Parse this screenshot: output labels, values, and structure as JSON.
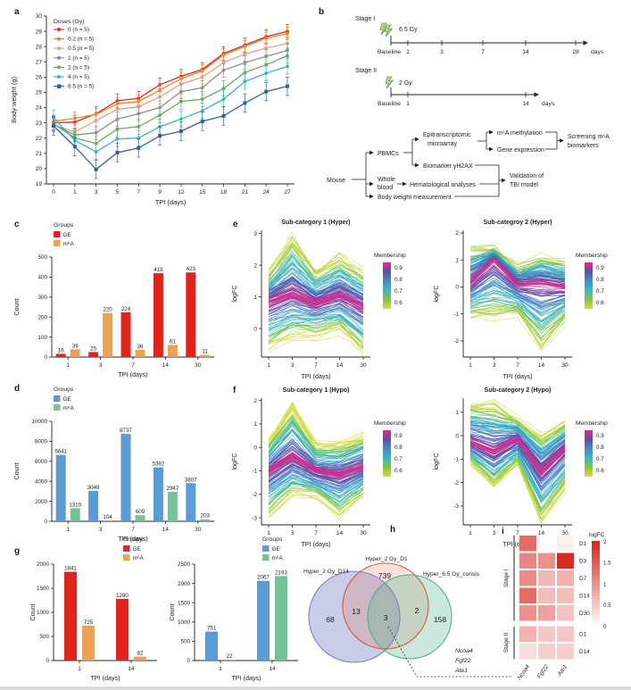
{
  "panels": {
    "a": "a",
    "b": "b",
    "c": "c",
    "d": "d",
    "e": "e",
    "f": "f",
    "g": "g",
    "h": "h",
    "i": "i"
  },
  "panel_b": {
    "stage1": {
      "label": "Stage I",
      "dose": "6.5 Gy",
      "baseline": "Baseline",
      "ticks": [
        "1",
        "3",
        "7",
        "14",
        "28"
      ],
      "unit": "days"
    },
    "stage2": {
      "label": "Stage II",
      "dose": "2 Gy",
      "baseline": "Baseline",
      "ticks": [
        "1",
        "14"
      ],
      "unit": "days"
    },
    "flow": {
      "mouse": "Mouse",
      "pbmcs": "PBMCs",
      "whole_blood_1": "Whole",
      "whole_blood_2": "blood",
      "body_weight": "Body weight measurement",
      "epitrans_1": "Epitranscriptomic",
      "epitrans_2": "microarray",
      "biomarker": "Biomarker γH2AX",
      "hematology": "Hematological analyses",
      "m6a_meth": "m⁶A methylation",
      "gene_expr": "Gene expression",
      "screening_1": "Screening m⁶A",
      "screening_2": "biomarkers",
      "validation_1": "Validation of",
      "validation_2": "TBI model"
    }
  },
  "membership": {
    "title": "Membership",
    "ticks": [
      "0.9",
      "0.8",
      "0.7",
      "0.6"
    ],
    "stops": [
      "#e8268d",
      "#5b50a5",
      "#3f8fc9",
      "#3ab9c0",
      "#86c53f",
      "#d8dd33"
    ]
  },
  "chart_data": [
    {
      "panel": "a",
      "type": "line",
      "xlabel": "TPI (days)",
      "ylabel": "Body weight (g)",
      "x": [
        0,
        1,
        3,
        5,
        7,
        9,
        12,
        15,
        18,
        21,
        24,
        27
      ],
      "ylim": [
        19,
        30
      ],
      "yticks": [
        19,
        20,
        21,
        22,
        23,
        24,
        25,
        26,
        27,
        28,
        29,
        30
      ],
      "legend_title": "Doses (Gy)",
      "series": [
        {
          "name": "0 (n = 5)",
          "color": "#d9291c",
          "err": 0.45,
          "values": [
            23.0,
            23.05,
            23.6,
            24.45,
            24.6,
            25.5,
            26.05,
            26.5,
            27.55,
            28.1,
            28.65,
            29.0
          ]
        },
        {
          "name": "0.2 (n = 5)",
          "color": "#e8861d",
          "err": 0.4,
          "values": [
            23.1,
            23.3,
            23.55,
            24.25,
            24.4,
            25.15,
            25.9,
            26.4,
            27.45,
            28.0,
            28.55,
            28.85
          ]
        },
        {
          "name": "0.5 (n = 5)",
          "color": "#e99d85",
          "err": 0.45,
          "values": [
            22.85,
            22.4,
            23.15,
            23.9,
            24.05,
            24.7,
            25.55,
            26.0,
            26.95,
            27.5,
            27.9,
            28.2
          ]
        },
        {
          "name": "1 (n = 5)",
          "color": "#8e8e8e",
          "err": 0.45,
          "values": [
            22.9,
            22.2,
            22.35,
            23.25,
            23.6,
            24.0,
            25.05,
            25.3,
            26.45,
            26.95,
            27.35,
            27.75
          ]
        },
        {
          "name": "2 (n = 5)",
          "color": "#5fae5f",
          "err": 0.5,
          "values": [
            22.95,
            22.0,
            21.65,
            22.6,
            22.75,
            23.5,
            24.4,
            24.55,
            25.25,
            26.3,
            26.8,
            27.4
          ]
        },
        {
          "name": "4 (n = 5)",
          "color": "#3ab8b0",
          "err": 0.5,
          "values": [
            23.35,
            21.85,
            21.1,
            21.95,
            22.0,
            22.75,
            23.25,
            23.8,
            24.55,
            25.7,
            26.25,
            26.7
          ]
        },
        {
          "name": "6.5 (n = 5)",
          "color": "#2f5fa5",
          "err": 0.6,
          "values": [
            22.8,
            21.45,
            19.95,
            21.05,
            21.35,
            22.15,
            22.45,
            23.1,
            23.45,
            24.3,
            25.05,
            25.4
          ]
        }
      ]
    },
    {
      "panel": "c",
      "type": "bar",
      "xlabel": "TPI (days)",
      "ylabel": "Count",
      "legend_title": "Groups",
      "categories": [
        "1",
        "3",
        "7",
        "14",
        "30"
      ],
      "ylim": [
        0,
        500
      ],
      "yticks": [
        0,
        100,
        200,
        300,
        400,
        500
      ],
      "series": [
        {
          "name": "GE",
          "color": "#e0231d",
          "values": [
            16,
            25,
            224,
            419,
            423
          ]
        },
        {
          "name": "m⁶A",
          "color": "#f0a052",
          "values": [
            39,
            220,
            36,
            61,
            11
          ]
        }
      ]
    },
    {
      "panel": "d",
      "type": "bar",
      "xlabel": "TPI (days)",
      "ylabel": "Count",
      "legend_title": "Groups",
      "categories": [
        "1",
        "3",
        "7",
        "14",
        "30"
      ],
      "ylim": [
        0,
        10000
      ],
      "yticks": [
        0,
        2000,
        4000,
        6000,
        8000,
        10000
      ],
      "series": [
        {
          "name": "GE",
          "color": "#5b9bd5",
          "values": [
            6641,
            3049,
            8737,
            5392,
            3807
          ]
        },
        {
          "name": "m⁶A",
          "color": "#74c296",
          "values": [
            1310,
            104,
            609,
            2947,
            203
          ]
        }
      ]
    },
    {
      "panel": "e1",
      "type": "fuzzy",
      "title": "Sub-category 1 (Hyper)",
      "xlabel": "TPI (days)",
      "ylabel": "logFC",
      "x": [
        "1",
        "3",
        "7",
        "14",
        "30"
      ],
      "ylim": [
        -0.9,
        3.1
      ],
      "yticks": [
        0,
        1,
        2,
        3
      ],
      "center": [
        0.85,
        1.1,
        0.8,
        1.05,
        0.7
      ],
      "up": [
        0.95,
        1.85,
        1.0,
        1.25,
        1.1
      ],
      "down": [
        1.5,
        1.3,
        1.0,
        1.1,
        1.5
      ],
      "n_lines": 160,
      "seed": 11
    },
    {
      "panel": "e2",
      "type": "fuzzy",
      "title": "Sub-categroy 2 (Hyper)",
      "xlabel": "TPI (days)",
      "ylabel": "logFC",
      "x": [
        "1",
        "3",
        "7",
        "14",
        "30"
      ],
      "ylim": [
        -2.6,
        2.1
      ],
      "yticks": [
        -2,
        -1,
        0,
        1,
        2
      ],
      "center": [
        0.15,
        1.0,
        0.1,
        0.15,
        0.0
      ],
      "up": [
        1.45,
        0.45,
        0.7,
        1.0,
        1.0
      ],
      "down": [
        1.3,
        2.2,
        1.1,
        2.6,
        1.3
      ],
      "n_lines": 160,
      "seed": 22
    },
    {
      "panel": "f1",
      "type": "fuzzy",
      "title": "Sub-category 1 (Hypo)",
      "xlabel": "TPI (days)",
      "ylabel": "logFC",
      "x": [
        "1",
        "3",
        "7",
        "14",
        "30"
      ],
      "ylim": [
        -3.3,
        2.1
      ],
      "yticks": [
        -3,
        -2,
        -1,
        0,
        1,
        2
      ],
      "center": [
        -1.0,
        -0.35,
        -1.0,
        -1.15,
        -0.8
      ],
      "up": [
        1.3,
        2.15,
        1.1,
        1.25,
        1.3
      ],
      "down": [
        2.0,
        1.75,
        1.1,
        1.85,
        1.3
      ],
      "n_lines": 170,
      "seed": 33
    },
    {
      "panel": "f2",
      "type": "fuzzy",
      "title": "Sub-category 2 (Hypo)",
      "xlabel": "TPI (days)",
      "ylabel": "logFC",
      "x": [
        "1",
        "3",
        "7",
        "14",
        "30"
      ],
      "ylim": [
        -3.8,
        1.6
      ],
      "yticks": [
        -3,
        -2,
        -1,
        0,
        1
      ],
      "center": [
        -0.3,
        -0.7,
        -0.15,
        -1.5,
        -0.55
      ],
      "up": [
        1.75,
        2.2,
        0.85,
        1.5,
        1.15
      ],
      "down": [
        0.85,
        1.5,
        1.05,
        2.2,
        1.75
      ],
      "n_lines": 170,
      "seed": 44
    },
    {
      "panel": "g1",
      "type": "bar",
      "xlabel": "TPI (days)",
      "ylabel": "Count",
      "legend_title": "Groups",
      "categories": [
        "1",
        "14"
      ],
      "ylim": [
        0,
        2000
      ],
      "yticks": [
        0,
        500,
        1000,
        1500,
        2000
      ],
      "series": [
        {
          "name": "GE",
          "color": "#e0231d",
          "values": [
            1841,
            1280
          ]
        },
        {
          "name": "m⁶A",
          "color": "#f0a052",
          "values": [
            725,
            82
          ]
        }
      ]
    },
    {
      "panel": "g2",
      "type": "bar",
      "xlabel": "TPI (days)",
      "ylabel": "Count",
      "legend_title": "Groups",
      "categories": [
        "1",
        "14"
      ],
      "ylim": [
        0,
        2500
      ],
      "yticks": [
        0,
        500,
        1000,
        1500,
        2000,
        2500
      ],
      "series": [
        {
          "name": "GE",
          "color": "#5b9bd5",
          "values": [
            751,
            2067
          ]
        },
        {
          "name": "m⁶A",
          "color": "#74c296",
          "values": [
            22,
            2193
          ]
        }
      ]
    },
    {
      "panel": "h",
      "type": "venn",
      "sets": [
        {
          "label": "Hyper_2 Gy_D14",
          "stroke": "#7a83c2",
          "fill": "#7a83c2",
          "opacity": 0.4
        },
        {
          "label": "Hyper_2 Gy_D1",
          "stroke": "#e2573a",
          "fill": "#e2573a",
          "opacity": 0.18
        },
        {
          "label": "Hyper_6.5 Gy_consis",
          "stroke": "#4eb287",
          "fill": "#4eb287",
          "opacity": 0.3
        }
      ],
      "counts": {
        "set1_only": "68",
        "set2_only": "739",
        "set3_only": "158",
        "set1_set2": "13",
        "set2_set3": "2",
        "all": "3"
      },
      "genes": [
        "Ncoa4",
        "Fgf22",
        "Ate1"
      ]
    },
    {
      "panel": "i",
      "type": "heatmap",
      "scale_title": "logFC",
      "scale_ticks": [
        "2",
        "1.5",
        "1",
        "0.5",
        "0"
      ],
      "scale_max": 2,
      "columns": [
        "Ncoa4",
        "Fgf22",
        "Ate1"
      ],
      "groups": [
        {
          "label": "Stage I",
          "rows": [
            "D1",
            "D3",
            "D7",
            "D14",
            "D30"
          ]
        },
        {
          "label": "Stage II",
          "rows": [
            "D1",
            "D14"
          ]
        }
      ],
      "values": [
        [
          1.35,
          0.03,
          0.15
        ],
        [
          1.1,
          1.0,
          1.95
        ],
        [
          1.05,
          0.65,
          0.7
        ],
        [
          1.35,
          0.6,
          0.6
        ],
        [
          1.0,
          0.85,
          0.55
        ],
        [
          0.7,
          0.5,
          0.5
        ],
        [
          0.3,
          0.45,
          0.45
        ]
      ],
      "color_high": "#d7231d"
    }
  ]
}
